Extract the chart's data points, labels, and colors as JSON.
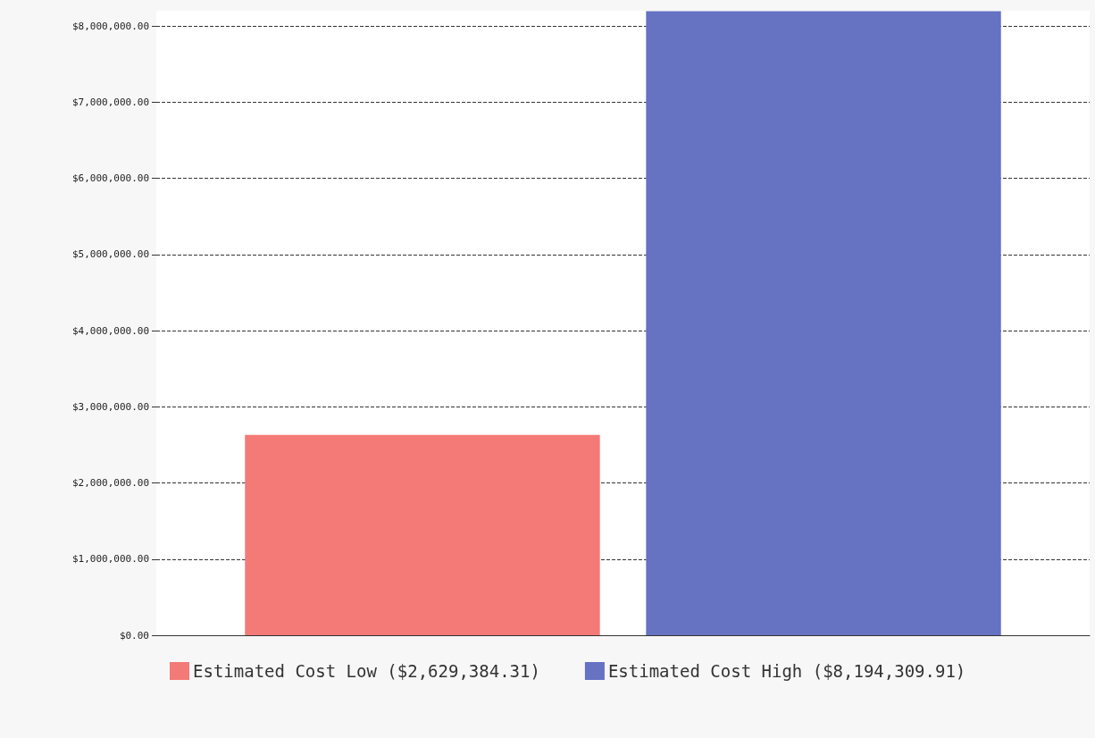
{
  "chart_data": {
    "type": "bar",
    "categories": [
      null
    ],
    "series": [
      {
        "name": "Estimated Cost Low ($2,629,384.31)",
        "color": "#f47a77",
        "values": [
          2629384.31
        ]
      },
      {
        "name": "Estimated Cost High ($8,194,309.91)",
        "color": "#6672c2",
        "values": [
          8194309.91
        ]
      }
    ],
    "ylim": [
      0,
      8200000
    ],
    "yticks": [
      {
        "value": 0,
        "label": "$0.00"
      },
      {
        "value": 1000000,
        "label": "$1,000,000.00"
      },
      {
        "value": 2000000,
        "label": "$2,000,000.00"
      },
      {
        "value": 3000000,
        "label": "$3,000,000.00"
      },
      {
        "value": 4000000,
        "label": "$4,000,000.00"
      },
      {
        "value": 5000000,
        "label": "$5,000,000.00"
      },
      {
        "value": 6000000,
        "label": "$6,000,000.00"
      },
      {
        "value": 7000000,
        "label": "$7,000,000.00"
      },
      {
        "value": 8000000,
        "label": "$8,000,000.00"
      }
    ],
    "grid": "y",
    "legend": "bottom"
  }
}
